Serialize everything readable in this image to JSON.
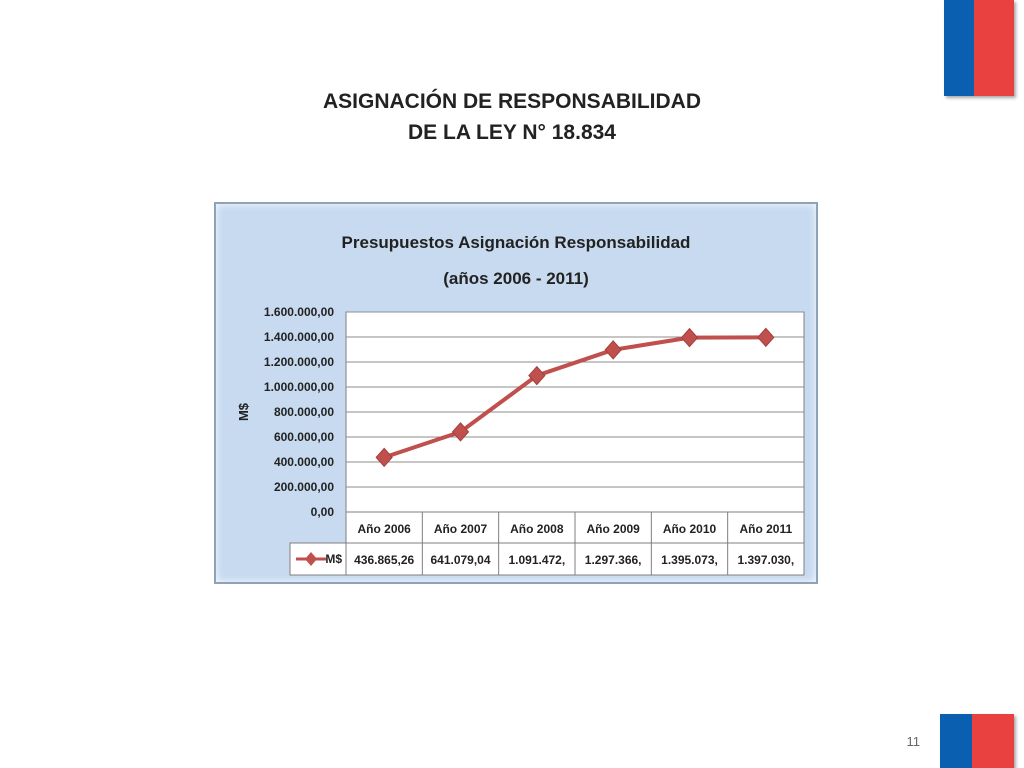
{
  "slide": {
    "title_line1": "ASIGNACIÓN DE RESPONSABILIDAD",
    "title_line2": "DE LA LEY N° 18.834",
    "page_number": "11"
  },
  "colors": {
    "flag_blue": "#0a5fb0",
    "flag_red": "#e8413f",
    "series": "#c0504d",
    "panel_bg": "#c7daf0"
  },
  "chart_data": {
    "type": "line",
    "title": "Presupuestos Asignación Responsabilidad",
    "subtitle": "(años 2006 - 2011)",
    "ylabel": "M$",
    "xlabel": "",
    "ylim": [
      0,
      1600000
    ],
    "yticks": [
      "0,00",
      "200.000,00",
      "400.000,00",
      "600.000,00",
      "800.000,00",
      "1.000.000,00",
      "1.200.000,00",
      "1.400.000,00",
      "1.600.000,00"
    ],
    "grid": true,
    "categories": [
      "Año 2006",
      "Año  2007",
      "Año  2008",
      "Año  2009",
      "Año  2010",
      "Año  2011"
    ],
    "series": [
      {
        "name": "M$",
        "values": [
          436865.26,
          641079.04,
          1091472,
          1297366,
          1395073,
          1397030
        ],
        "table_labels": [
          "436.865,26",
          "641.079,04",
          "1.091.472,",
          "1.297.366,",
          "1.395.073,",
          "1.397.030,"
        ]
      }
    ]
  }
}
